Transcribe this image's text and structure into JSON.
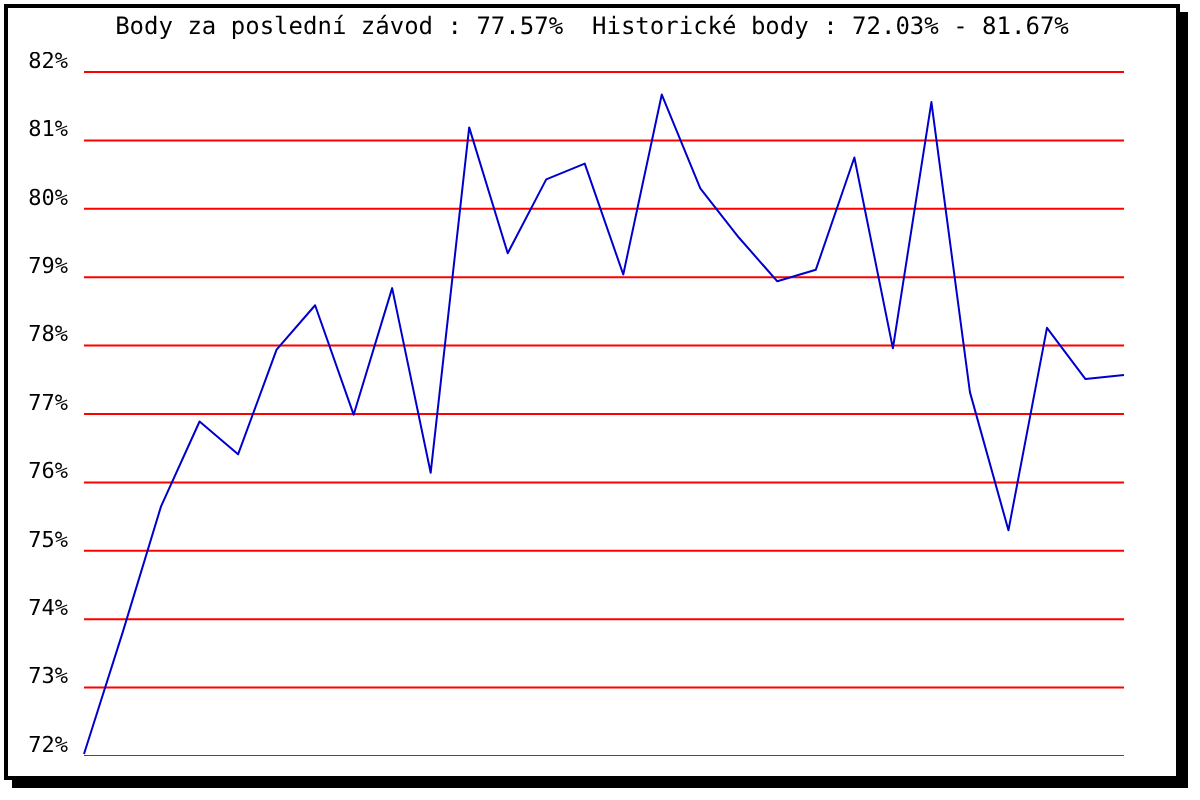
{
  "chart_data": {
    "type": "line",
    "title": "Body za poslední závod : 77.57%  Historické body : 72.03% - 81.67%",
    "categories": [
      null,
      null,
      null,
      null,
      null,
      null,
      null,
      null,
      null,
      null,
      null,
      null,
      null,
      null,
      null,
      null,
      null,
      null,
      null,
      null,
      null,
      null,
      null,
      null,
      null,
      null,
      null,
      null
    ],
    "series": [
      {
        "color": "#0000cc",
        "values": [
          72.03,
          73.8,
          75.65,
          76.89,
          76.41,
          77.94,
          78.59,
          76.99,
          78.84,
          76.14,
          81.19,
          79.35,
          80.43,
          80.66,
          79.04,
          81.67,
          80.3,
          79.58,
          78.94,
          79.11,
          80.75,
          77.96,
          81.56,
          77.32,
          75.3,
          78.26,
          77.51,
          77.57
        ]
      }
    ],
    "ylim": [
      72,
      82
    ],
    "yticks": [
      {
        "value": 72,
        "label": "72%"
      },
      {
        "value": 73,
        "label": "73%"
      },
      {
        "value": 74,
        "label": "74%"
      },
      {
        "value": 75,
        "label": "75%"
      },
      {
        "value": 76,
        "label": "76%"
      },
      {
        "value": 77,
        "label": "77%"
      },
      {
        "value": 78,
        "label": "78%"
      },
      {
        "value": 79,
        "label": "79%"
      },
      {
        "value": 80,
        "label": "80%"
      },
      {
        "value": 81,
        "label": "81%"
      },
      {
        "value": 82,
        "label": "82%"
      }
    ],
    "grid": "y",
    "tick_labels": "y",
    "marker": "none",
    "line_style": "solid"
  }
}
